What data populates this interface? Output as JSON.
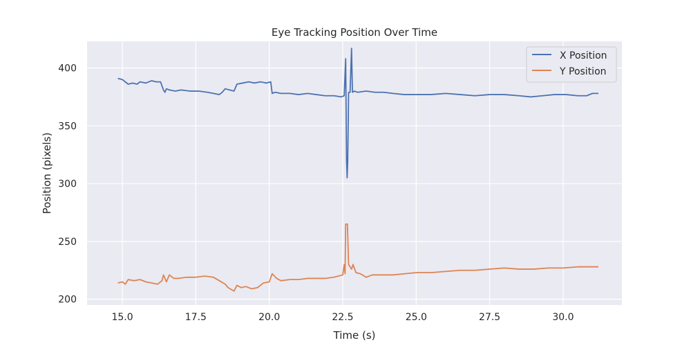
{
  "chart_data": {
    "type": "line",
    "title": "Eye Tracking Position Over Time",
    "xlabel": "Time (s)",
    "ylabel": "Position (pixels)",
    "xlim": [
      13.8,
      32.0
    ],
    "ylim": [
      195,
      423
    ],
    "xticks": [
      15.0,
      17.5,
      20.0,
      22.5,
      25.0,
      27.5,
      30.0
    ],
    "xtick_labels": [
      "15.0",
      "17.5",
      "20.0",
      "22.5",
      "25.0",
      "27.5",
      "30.0"
    ],
    "yticks": [
      200,
      250,
      300,
      350,
      400
    ],
    "ytick_labels": [
      "200",
      "250",
      "300",
      "350",
      "400"
    ],
    "grid": true,
    "legend_position": "top-right",
    "series": [
      {
        "name": "X Position",
        "color": "#4c72b0",
        "points": [
          [
            14.85,
            391
          ],
          [
            15.0,
            390
          ],
          [
            15.1,
            388
          ],
          [
            15.2,
            386
          ],
          [
            15.35,
            387
          ],
          [
            15.5,
            386
          ],
          [
            15.6,
            388
          ],
          [
            15.8,
            387
          ],
          [
            16.0,
            389
          ],
          [
            16.15,
            388
          ],
          [
            16.3,
            388
          ],
          [
            16.4,
            381
          ],
          [
            16.45,
            379
          ],
          [
            16.5,
            382
          ],
          [
            16.6,
            381
          ],
          [
            16.8,
            380
          ],
          [
            17.0,
            381
          ],
          [
            17.3,
            380
          ],
          [
            17.6,
            380
          ],
          [
            17.9,
            379
          ],
          [
            18.1,
            378
          ],
          [
            18.3,
            377
          ],
          [
            18.4,
            379
          ],
          [
            18.5,
            382
          ],
          [
            18.65,
            381
          ],
          [
            18.8,
            380
          ],
          [
            18.9,
            386
          ],
          [
            19.1,
            387
          ],
          [
            19.3,
            388
          ],
          [
            19.5,
            387
          ],
          [
            19.7,
            388
          ],
          [
            19.9,
            387
          ],
          [
            20.05,
            388
          ],
          [
            20.1,
            378
          ],
          [
            20.2,
            379
          ],
          [
            20.4,
            378
          ],
          [
            20.7,
            378
          ],
          [
            21.0,
            377
          ],
          [
            21.3,
            378
          ],
          [
            21.6,
            377
          ],
          [
            21.9,
            376
          ],
          [
            22.2,
            376
          ],
          [
            22.45,
            375
          ],
          [
            22.55,
            376
          ],
          [
            22.6,
            408
          ],
          [
            22.63,
            320
          ],
          [
            22.65,
            305
          ],
          [
            22.67,
            320
          ],
          [
            22.7,
            379
          ],
          [
            22.75,
            379
          ],
          [
            22.8,
            417
          ],
          [
            22.83,
            379
          ],
          [
            22.9,
            380
          ],
          [
            23.0,
            379
          ],
          [
            23.3,
            380
          ],
          [
            23.6,
            379
          ],
          [
            23.9,
            379
          ],
          [
            24.2,
            378
          ],
          [
            24.6,
            377
          ],
          [
            25.0,
            377
          ],
          [
            25.5,
            377
          ],
          [
            26.0,
            378
          ],
          [
            26.5,
            377
          ],
          [
            27.0,
            376
          ],
          [
            27.5,
            377
          ],
          [
            28.0,
            377
          ],
          [
            28.5,
            376
          ],
          [
            28.9,
            375
          ],
          [
            29.3,
            376
          ],
          [
            29.7,
            377
          ],
          [
            30.1,
            377
          ],
          [
            30.5,
            376
          ],
          [
            30.8,
            376
          ],
          [
            31.0,
            378
          ],
          [
            31.2,
            378
          ]
        ]
      },
      {
        "name": "Y Position",
        "color": "#dd8452",
        "points": [
          [
            14.85,
            214
          ],
          [
            15.0,
            215
          ],
          [
            15.1,
            213
          ],
          [
            15.2,
            217
          ],
          [
            15.4,
            216
          ],
          [
            15.6,
            217
          ],
          [
            15.8,
            215
          ],
          [
            16.0,
            214
          ],
          [
            16.2,
            213
          ],
          [
            16.35,
            216
          ],
          [
            16.4,
            221
          ],
          [
            16.5,
            215
          ],
          [
            16.6,
            221
          ],
          [
            16.75,
            218
          ],
          [
            16.9,
            218
          ],
          [
            17.2,
            219
          ],
          [
            17.5,
            219
          ],
          [
            17.8,
            220
          ],
          [
            18.1,
            219
          ],
          [
            18.3,
            216
          ],
          [
            18.5,
            213
          ],
          [
            18.6,
            210
          ],
          [
            18.8,
            207
          ],
          [
            18.9,
            212
          ],
          [
            19.05,
            210
          ],
          [
            19.2,
            211
          ],
          [
            19.4,
            209
          ],
          [
            19.6,
            210
          ],
          [
            19.8,
            214
          ],
          [
            20.0,
            215
          ],
          [
            20.1,
            222
          ],
          [
            20.25,
            218
          ],
          [
            20.4,
            216
          ],
          [
            20.7,
            217
          ],
          [
            21.0,
            217
          ],
          [
            21.3,
            218
          ],
          [
            21.6,
            218
          ],
          [
            21.9,
            218
          ],
          [
            22.2,
            219
          ],
          [
            22.5,
            221
          ],
          [
            22.55,
            230
          ],
          [
            22.58,
            222
          ],
          [
            22.6,
            265
          ],
          [
            22.66,
            265
          ],
          [
            22.7,
            230
          ],
          [
            22.8,
            226
          ],
          [
            22.85,
            230
          ],
          [
            22.95,
            223
          ],
          [
            23.1,
            222
          ],
          [
            23.3,
            219
          ],
          [
            23.5,
            221
          ],
          [
            23.8,
            221
          ],
          [
            24.2,
            221
          ],
          [
            24.6,
            222
          ],
          [
            25.0,
            223
          ],
          [
            25.5,
            223
          ],
          [
            26.0,
            224
          ],
          [
            26.5,
            225
          ],
          [
            27.0,
            225
          ],
          [
            27.5,
            226
          ],
          [
            28.0,
            227
          ],
          [
            28.5,
            226
          ],
          [
            29.0,
            226
          ],
          [
            29.5,
            227
          ],
          [
            30.0,
            227
          ],
          [
            30.5,
            228
          ],
          [
            31.0,
            228
          ],
          [
            31.2,
            228
          ]
        ]
      }
    ]
  }
}
